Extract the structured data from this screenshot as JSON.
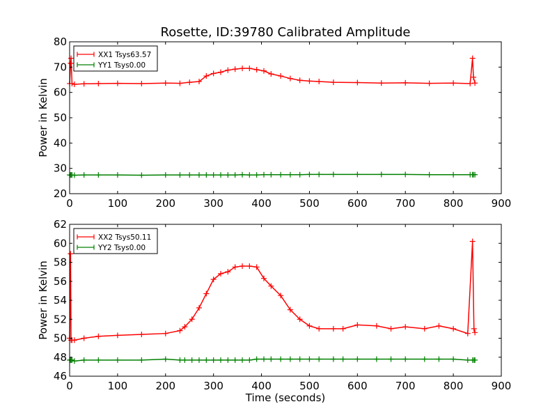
{
  "figure": {
    "title": "Rosette, ID:39780 Calibrated Amplitude"
  },
  "chart_data": [
    {
      "type": "line",
      "ylabel": "Power in Kelvin",
      "xlabel": "",
      "xlim": [
        0,
        900
      ],
      "ylim": [
        20,
        80
      ],
      "xticks": [
        0,
        100,
        200,
        300,
        400,
        500,
        600,
        700,
        800,
        900
      ],
      "yticks": [
        20,
        30,
        40,
        50,
        60,
        70,
        80
      ],
      "legend_position": "top-left",
      "grid": false,
      "x_points": [
        0,
        2,
        3,
        5,
        10,
        30,
        60,
        100,
        150,
        200,
        230,
        250,
        270,
        285,
        300,
        315,
        330,
        345,
        360,
        375,
        390,
        405,
        420,
        440,
        460,
        480,
        500,
        520,
        550,
        600,
        650,
        700,
        750,
        800,
        835,
        840,
        842,
        845
      ],
      "series": [
        {
          "name": "XX1 Tsys63.57",
          "color": "#ff0000",
          "marker": "+",
          "values": [
            63.5,
            71.5,
            73.5,
            63.5,
            63.2,
            63.4,
            63.5,
            63.6,
            63.5,
            63.7,
            63.6,
            64.0,
            64.3,
            66.5,
            67.5,
            68.0,
            68.8,
            69.2,
            69.5,
            69.5,
            69.0,
            68.5,
            67.3,
            66.5,
            65.5,
            64.8,
            64.5,
            64.3,
            64.0,
            63.9,
            63.7,
            63.8,
            63.6,
            63.7,
            63.5,
            73.5,
            66.0,
            63.7
          ]
        },
        {
          "name": "YY1 Tsys0.00",
          "color": "#008000",
          "marker": "+",
          "values": [
            27.4,
            27.4,
            27.4,
            27.4,
            27.3,
            27.4,
            27.4,
            27.4,
            27.3,
            27.4,
            27.4,
            27.4,
            27.4,
            27.4,
            27.4,
            27.4,
            27.4,
            27.4,
            27.5,
            27.4,
            27.4,
            27.5,
            27.5,
            27.5,
            27.5,
            27.5,
            27.6,
            27.6,
            27.6,
            27.6,
            27.6,
            27.6,
            27.5,
            27.5,
            27.5,
            27.5,
            27.5,
            27.5
          ]
        }
      ]
    },
    {
      "type": "line",
      "ylabel": "Power in Kelvin",
      "xlabel": "Time (seconds)",
      "xlim": [
        0,
        900
      ],
      "ylim": [
        46,
        62
      ],
      "xticks": [
        0,
        100,
        200,
        300,
        400,
        500,
        600,
        700,
        800,
        900
      ],
      "yticks": [
        46,
        48,
        50,
        52,
        54,
        56,
        58,
        60,
        62
      ],
      "legend_position": "top-left",
      "grid": false,
      "x_points": [
        0,
        2,
        3,
        5,
        10,
        30,
        60,
        100,
        150,
        200,
        230,
        240,
        255,
        270,
        285,
        300,
        315,
        330,
        345,
        360,
        375,
        390,
        405,
        420,
        440,
        460,
        480,
        500,
        520,
        550,
        570,
        600,
        640,
        670,
        700,
        740,
        770,
        800,
        830,
        840,
        843,
        845
      ],
      "series": [
        {
          "name": "XX2 Tsys50.11",
          "color": "#ff0000",
          "marker": "+",
          "values": [
            50.0,
            58.9,
            49.8,
            49.8,
            49.8,
            50.0,
            50.2,
            50.3,
            50.4,
            50.5,
            50.8,
            51.2,
            52.0,
            53.2,
            54.7,
            56.2,
            56.8,
            57.0,
            57.5,
            57.6,
            57.6,
            57.5,
            56.3,
            55.5,
            54.5,
            53.0,
            52.0,
            51.3,
            51.0,
            51.0,
            51.0,
            51.4,
            51.3,
            51.0,
            51.2,
            51.0,
            51.3,
            51.0,
            50.5,
            60.2,
            51.0,
            50.6
          ]
        },
        {
          "name": "YY2 Tsys0.00",
          "color": "#008000",
          "marker": "+",
          "values": [
            47.7,
            47.7,
            47.7,
            47.7,
            47.6,
            47.7,
            47.7,
            47.7,
            47.7,
            47.8,
            47.7,
            47.7,
            47.7,
            47.7,
            47.7,
            47.7,
            47.7,
            47.7,
            47.7,
            47.7,
            47.7,
            47.8,
            47.8,
            47.8,
            47.8,
            47.8,
            47.8,
            47.8,
            47.8,
            47.8,
            47.8,
            47.8,
            47.8,
            47.8,
            47.8,
            47.8,
            47.8,
            47.8,
            47.7,
            47.7,
            47.7,
            47.7
          ]
        }
      ]
    }
  ]
}
